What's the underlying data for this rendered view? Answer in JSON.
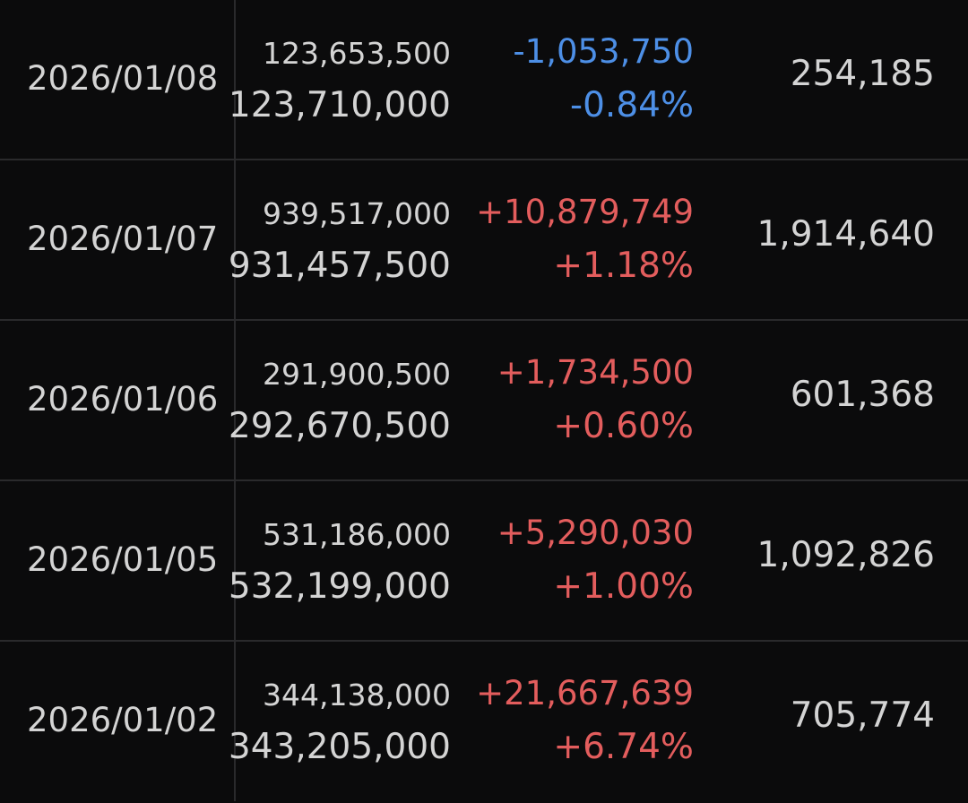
{
  "colors": {
    "up": "#e35d5d",
    "down": "#4d8fe6"
  },
  "rows": [
    {
      "date": "2026/01/08",
      "value1": "123,653,500",
      "value2": "123,710,000",
      "change": "-1,053,750",
      "percent": "-0.84%",
      "volume": "254,185",
      "direction": "down"
    },
    {
      "date": "2026/01/07",
      "value1": "939,517,000",
      "value2": "931,457,500",
      "change": "+10,879,749",
      "percent": "+1.18%",
      "volume": "1,914,640",
      "direction": "up"
    },
    {
      "date": "2026/01/06",
      "value1": "291,900,500",
      "value2": "292,670,500",
      "change": "+1,734,500",
      "percent": "+0.60%",
      "volume": "601,368",
      "direction": "up"
    },
    {
      "date": "2026/01/05",
      "value1": "531,186,000",
      "value2": "532,199,000",
      "change": "+5,290,030",
      "percent": "+1.00%",
      "volume": "1,092,826",
      "direction": "up"
    },
    {
      "date": "2026/01/02",
      "value1": "344,138,000",
      "value2": "343,205,000",
      "change": "+21,667,639",
      "percent": "+6.74%",
      "volume": "705,774",
      "direction": "up"
    }
  ]
}
